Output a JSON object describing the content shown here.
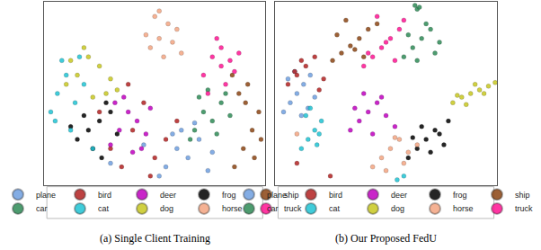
{
  "chart_data": [
    {
      "type": "scatter",
      "title": "(a) Single Client Training",
      "xlim": [
        0,
        100
      ],
      "ylim": [
        0,
        100
      ],
      "tick_labels": false,
      "legend": "bottom",
      "series": [
        {
          "name": "plane",
          "color": "#6f9fe0",
          "x": [
            55,
            60,
            65,
            70,
            74,
            62,
            52,
            58,
            68,
            76,
            45,
            30
          ],
          "y": [
            10,
            20,
            15,
            25,
            8,
            30,
            5,
            28,
            34,
            18,
            22,
            12
          ]
        },
        {
          "name": "bird",
          "color": "#b22222",
          "x": [
            30,
            40,
            50,
            45,
            35,
            55,
            25,
            48,
            38,
            60
          ],
          "y": [
            20,
            30,
            15,
            45,
            10,
            25,
            40,
            5,
            55,
            35
          ]
        },
        {
          "name": "deer",
          "color": "#c000c0",
          "x": [
            30,
            34,
            38,
            42,
            46,
            36,
            40,
            32,
            44,
            48
          ],
          "y": [
            22,
            30,
            40,
            35,
            28,
            48,
            18,
            45,
            20,
            42
          ]
        },
        {
          "name": "frog",
          "color": "#000000",
          "x": [
            15,
            20,
            25,
            30,
            22,
            28,
            18,
            33,
            26,
            12
          ],
          "y": [
            25,
            30,
            35,
            40,
            20,
            45,
            38,
            28,
            15,
            32
          ]
        },
        {
          "name": "ship",
          "color": "#8b4513",
          "x": [
            86,
            90,
            94,
            97,
            88,
            92,
            95,
            85,
            98,
            91
          ],
          "y": [
            10,
            20,
            30,
            40,
            50,
            55,
            15,
            60,
            25,
            45
          ]
        },
        {
          "name": "car",
          "color": "#2e8b57",
          "x": [
            68,
            72,
            76,
            80,
            84,
            70,
            78,
            74,
            82,
            66
          ],
          "y": [
            30,
            40,
            35,
            45,
            38,
            48,
            28,
            52,
            50,
            25
          ]
        },
        {
          "name": "cat",
          "color": "#1fc4d4",
          "x": [
            3,
            6,
            10,
            14,
            8,
            18,
            5,
            12,
            16,
            22
          ],
          "y": [
            40,
            50,
            60,
            45,
            68,
            55,
            35,
            30,
            70,
            20
          ]
        },
        {
          "name": "dog",
          "color": "#c8c820",
          "x": [
            10,
            15,
            20,
            25,
            30,
            18,
            28,
            22,
            12,
            33
          ],
          "y": [
            55,
            60,
            70,
            65,
            58,
            75,
            50,
            48,
            68,
            52
          ]
        },
        {
          "name": "horse",
          "color": "#f4a582",
          "x": [
            48,
            52,
            56,
            60,
            50,
            54,
            58,
            46,
            62,
            52
          ],
          "y": [
            75,
            80,
            88,
            85,
            92,
            70,
            78,
            82,
            72,
            95
          ]
        },
        {
          "name": "truck",
          "color": "#ff1493",
          "x": [
            72,
            76,
            80,
            84,
            88,
            78,
            82,
            74,
            86,
            80
          ],
          "y": [
            60,
            70,
            75,
            68,
            72,
            80,
            55,
            50,
            62,
            65
          ]
        }
      ]
    },
    {
      "type": "scatter",
      "title": "(b) Our Proposed FedU",
      "xlim": [
        0,
        100
      ],
      "ylim": [
        0,
        100
      ],
      "tick_labels": false,
      "legend": "bottom",
      "series": [
        {
          "name": "plane",
          "color": "#6f9fe0",
          "x": [
            4,
            7,
            10,
            13,
            16,
            6,
            12,
            18,
            9,
            15
          ],
          "y": [
            40,
            45,
            50,
            55,
            60,
            58,
            38,
            48,
            62,
            42
          ]
        },
        {
          "name": "bird",
          "color": "#b22222",
          "x": [
            6,
            10,
            14,
            18,
            22,
            12,
            20,
            9,
            10,
            25
          ],
          "y": [
            55,
            60,
            65,
            70,
            58,
            68,
            52,
            62,
            12,
            5
          ]
        },
        {
          "name": "deer",
          "color": "#c000c0",
          "x": [
            34,
            38,
            42,
            46,
            50,
            54,
            40,
            48,
            44,
            36
          ],
          "y": [
            30,
            35,
            40,
            45,
            38,
            32,
            50,
            48,
            28,
            42
          ]
        },
        {
          "name": "frog",
          "color": "#000000",
          "x": [
            60,
            64,
            68,
            72,
            76,
            78,
            66,
            70,
            74,
            62
          ],
          "y": [
            15,
            20,
            25,
            30,
            22,
            35,
            32,
            18,
            28,
            26
          ]
        },
        {
          "name": "ship",
          "color": "#8b4513",
          "x": [
            26,
            30,
            34,
            38,
            42,
            46,
            32,
            40,
            36,
            28
          ],
          "y": [
            68,
            72,
            76,
            80,
            85,
            88,
            90,
            70,
            74,
            82
          ]
        },
        {
          "name": "car",
          "color": "#2e8b57",
          "x": [
            58,
            62,
            66,
            70,
            74,
            64,
            68,
            60,
            72,
            64,
            63,
            65
          ],
          "y": [
            70,
            75,
            80,
            85,
            78,
            68,
            88,
            82,
            72,
            96,
            98,
            97
          ]
        },
        {
          "name": "cat",
          "color": "#1fc4d4",
          "x": [
            12,
            15,
            18,
            21,
            14,
            19,
            16,
            55,
            58,
            20
          ],
          "y": [
            20,
            25,
            30,
            35,
            38,
            22,
            42,
            3,
            5,
            28
          ]
        },
        {
          "name": "dog",
          "color": "#c8c820",
          "x": [
            80,
            84,
            88,
            92,
            96,
            99,
            86,
            90,
            94,
            82
          ],
          "y": [
            45,
            48,
            50,
            52,
            54,
            56,
            44,
            55,
            50,
            49
          ]
        },
        {
          "name": "horse",
          "color": "#f4a582",
          "x": [
            44,
            48,
            52,
            56,
            60,
            64,
            50,
            58,
            10,
            54
          ],
          "y": [
            10,
            15,
            20,
            25,
            18,
            22,
            8,
            12,
            28,
            26
          ]
        },
        {
          "name": "truck",
          "color": "#ff1493",
          "x": [
            40,
            44,
            48,
            52,
            56,
            58,
            46,
            54,
            50,
            42
          ],
          "y": [
            65,
            70,
            75,
            80,
            85,
            90,
            92,
            68,
            78,
            72
          ]
        }
      ]
    }
  ]
}
